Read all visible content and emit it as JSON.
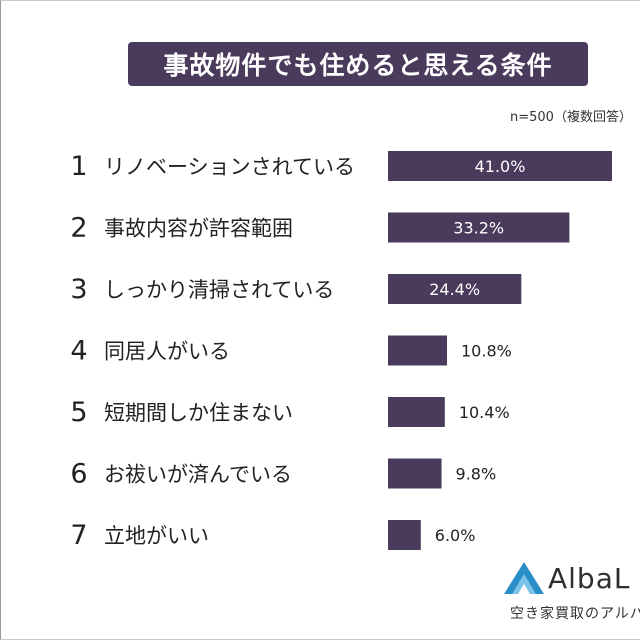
{
  "title": "事故物件でも住めると思える条件",
  "note": "n=500（複数回答）",
  "chart_data": {
    "type": "bar",
    "orientation": "horizontal",
    "ranks": [
      "1",
      "2",
      "3",
      "4",
      "5",
      "6",
      "7"
    ],
    "categories": [
      "リノベーションされている",
      "事故内容が許容範囲",
      "しっかり清掃されている",
      "同居人がいる",
      "短期間しか住まない",
      "お祓いが済んでいる",
      "立地がいい"
    ],
    "values": [
      41.0,
      33.2,
      24.4,
      10.8,
      10.4,
      9.8,
      6.0
    ],
    "value_labels": [
      "41.0%",
      "33.2%",
      "24.4%",
      "10.8%",
      "10.4%",
      "9.8%",
      "6.0%"
    ],
    "unit": "%",
    "xlim": [
      0,
      41.0
    ],
    "grid": false,
    "legend": "none",
    "bar_color": "#4a3a5c",
    "label_color": "#222222"
  },
  "logo": {
    "name": "AlbaL",
    "tagline": "空き家買取のアルバ",
    "color": "#2a8fc9"
  }
}
